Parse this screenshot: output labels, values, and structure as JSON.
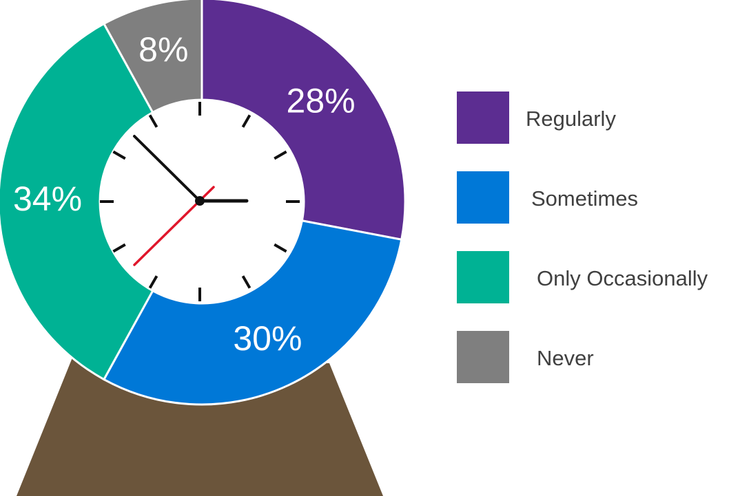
{
  "chart_data": {
    "type": "donut",
    "categories": [
      "Regularly",
      "Sometimes",
      "Only Occasionally",
      "Never"
    ],
    "values": [
      28,
      30,
      34,
      8
    ],
    "value_labels": [
      "28%",
      "30%",
      "34%",
      "8%"
    ],
    "colors": [
      "#5c2d91",
      "#0078d7",
      "#00b294",
      "#7f7f7f"
    ]
  }
}
